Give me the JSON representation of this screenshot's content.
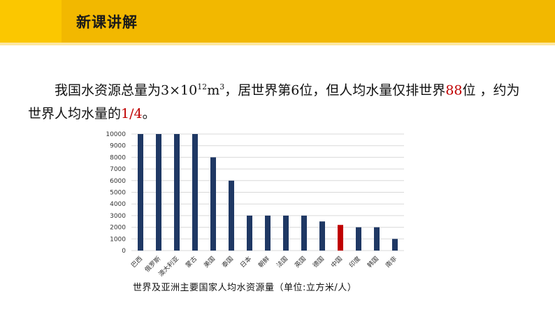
{
  "header": {
    "title": "新课讲解"
  },
  "paragraph": {
    "p1": "我国水资源总量为3×10",
    "exp": "12",
    "p2": "m",
    "exp2": "3",
    "p3": "，居世界第6位，但人均水量仅排世界",
    "rank": "88",
    "p4": "位 ，约为",
    "p5": "世界人均水量的",
    "fraction": "1/4",
    "p6": "。"
  },
  "colors": {
    "accent": "#f9c300",
    "bar": "#1f3864",
    "highlight": "#c00000"
  },
  "chart_data": {
    "type": "bar",
    "title": "世界及亚洲主要国家人均水资源量（单位:立方米/人）",
    "categories": [
      "巴西",
      "俄罗斯",
      "澳大利亚",
      "蒙古",
      "美国",
      "泰国",
      "日本",
      "朝鲜",
      "法国",
      "英国",
      "德国",
      "中国",
      "印度",
      "韩国",
      "南非"
    ],
    "values": [
      10000,
      10000,
      10000,
      10000,
      8000,
      6000,
      3000,
      3000,
      3000,
      3000,
      2500,
      2200,
      2000,
      2000,
      1000
    ],
    "highlight": "中国",
    "yticks": [
      0,
      1000,
      2000,
      3000,
      4000,
      5000,
      6000,
      7000,
      8000,
      9000,
      10000
    ],
    "ylim": [
      0,
      10000
    ],
    "grid": true
  }
}
